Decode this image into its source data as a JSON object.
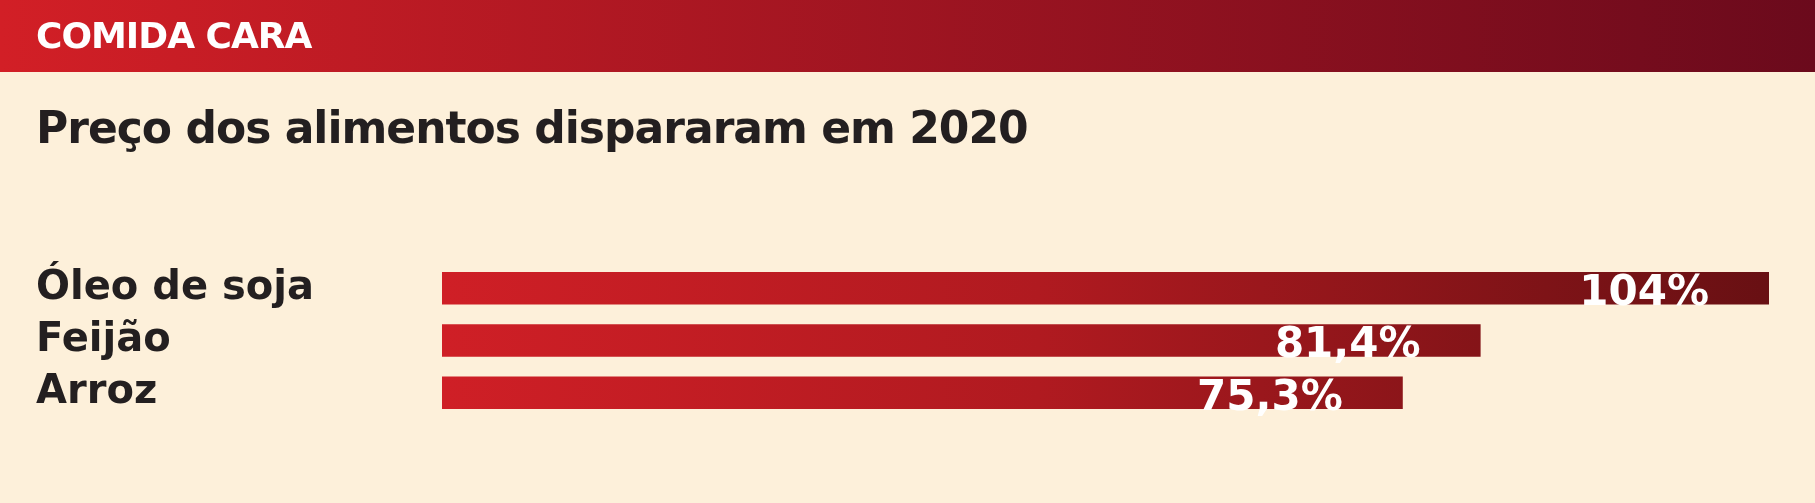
{
  "chart_data": {
    "type": "bar",
    "orientation": "horizontal",
    "title": "COMIDA CARA",
    "subtitle": "Preço dos alimentos dispararam em 2020",
    "categories": [
      "Óleo de soja",
      "Feijão",
      "Arroz"
    ],
    "values": [
      104,
      81.4,
      75.3
    ],
    "value_labels": [
      "104%",
      "81,4%",
      "75,3%"
    ],
    "color": "#cf1f26"
  }
}
